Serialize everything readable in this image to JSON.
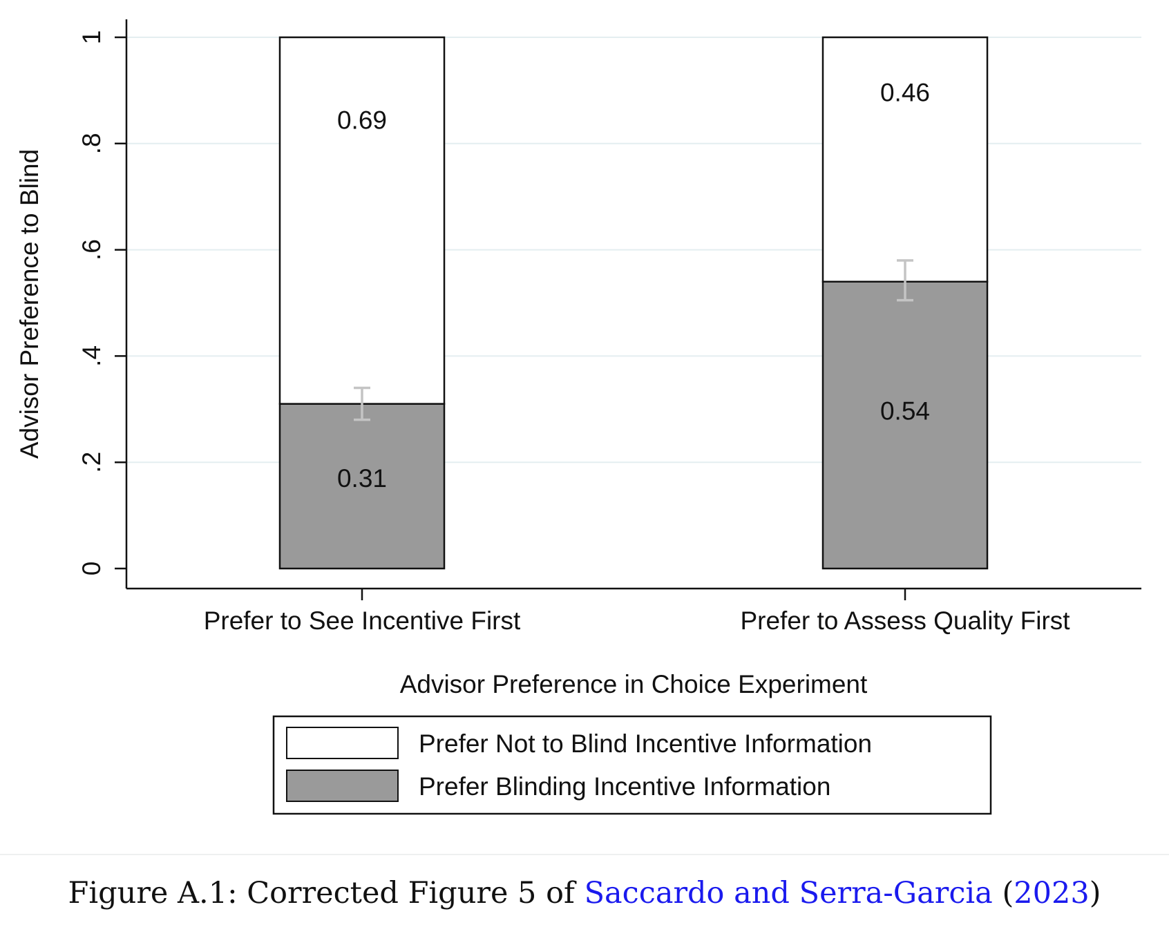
{
  "chart_data": {
    "type": "bar",
    "stacked": true,
    "categories": [
      "Prefer to See Incentive First",
      "Prefer to Assess Quality First"
    ],
    "series": [
      {
        "name": "Prefer Blinding Incentive Information",
        "values": [
          0.31,
          0.54
        ],
        "labels": [
          "0.31",
          "0.54"
        ],
        "color": "#9a9a9a"
      },
      {
        "name": "Prefer Not to Blind Incentive Information",
        "values": [
          0.69,
          0.46
        ],
        "labels": [
          "0.69",
          "0.46"
        ],
        "color": "#ffffff"
      }
    ],
    "error_bars": [
      {
        "category": "Prefer to See Incentive First",
        "low": 0.28,
        "high": 0.34
      },
      {
        "category": "Prefer to Assess Quality First",
        "low": 0.505,
        "high": 0.58
      }
    ],
    "ylabel": "Advisor Preference to Blind",
    "xlabel": "Advisor Preference in Choice Experiment",
    "ylim": [
      0,
      1
    ],
    "yticks": [
      0,
      0.2,
      0.4,
      0.6,
      0.8,
      1
    ],
    "ytick_labels": [
      "0",
      ".2",
      ".4",
      ".6",
      ".8",
      "1"
    ],
    "grid": true,
    "grid_color": "#e4eef0",
    "legend_position": "bottom",
    "legend": [
      {
        "label": "Prefer Not to Blind Incentive Information",
        "color": "#ffffff"
      },
      {
        "label": "Prefer Blinding Incentive Information",
        "color": "#9a9a9a"
      }
    ]
  },
  "caption": {
    "prefix": "Figure A.1: Corrected Figure 5 of ",
    "citation_authors": "Saccardo and Serra-Garcia",
    "open_paren": " (",
    "citation_year": "2023",
    "close_paren": ")",
    "link_color": "#1a1aee"
  }
}
